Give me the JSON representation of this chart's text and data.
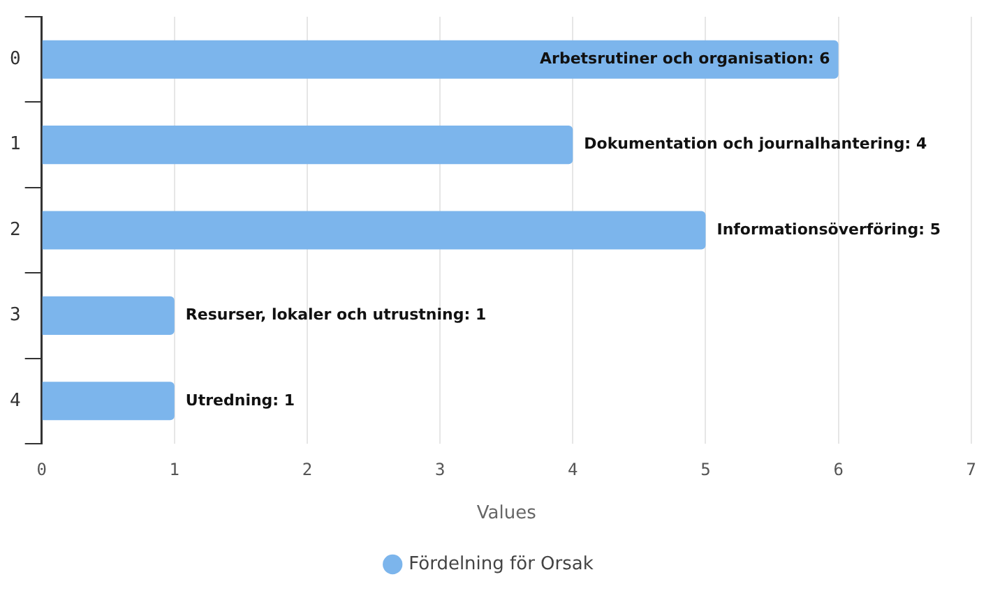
{
  "chart_data": {
    "type": "bar",
    "orientation": "horizontal",
    "categories": [
      "0",
      "1",
      "2",
      "3",
      "4"
    ],
    "series": [
      {
        "name": "Fördelning för Orsak",
        "color": "#7cb5ec",
        "values": [
          6,
          4,
          5,
          1,
          1
        ],
        "value_labels": [
          "Arbetsrutiner och organisation: 6",
          "Dokumentation och journalhantering: 4",
          "Informationsöverföring: 5",
          "Resurser, lokaler och utrustning: 1",
          "Utredning: 1"
        ]
      }
    ],
    "xlabel": "Values",
    "xlim": [
      0,
      7
    ],
    "xticks": [
      0,
      1,
      2,
      3,
      4,
      5,
      6,
      7
    ],
    "grid": "x",
    "legend": "bottom"
  }
}
